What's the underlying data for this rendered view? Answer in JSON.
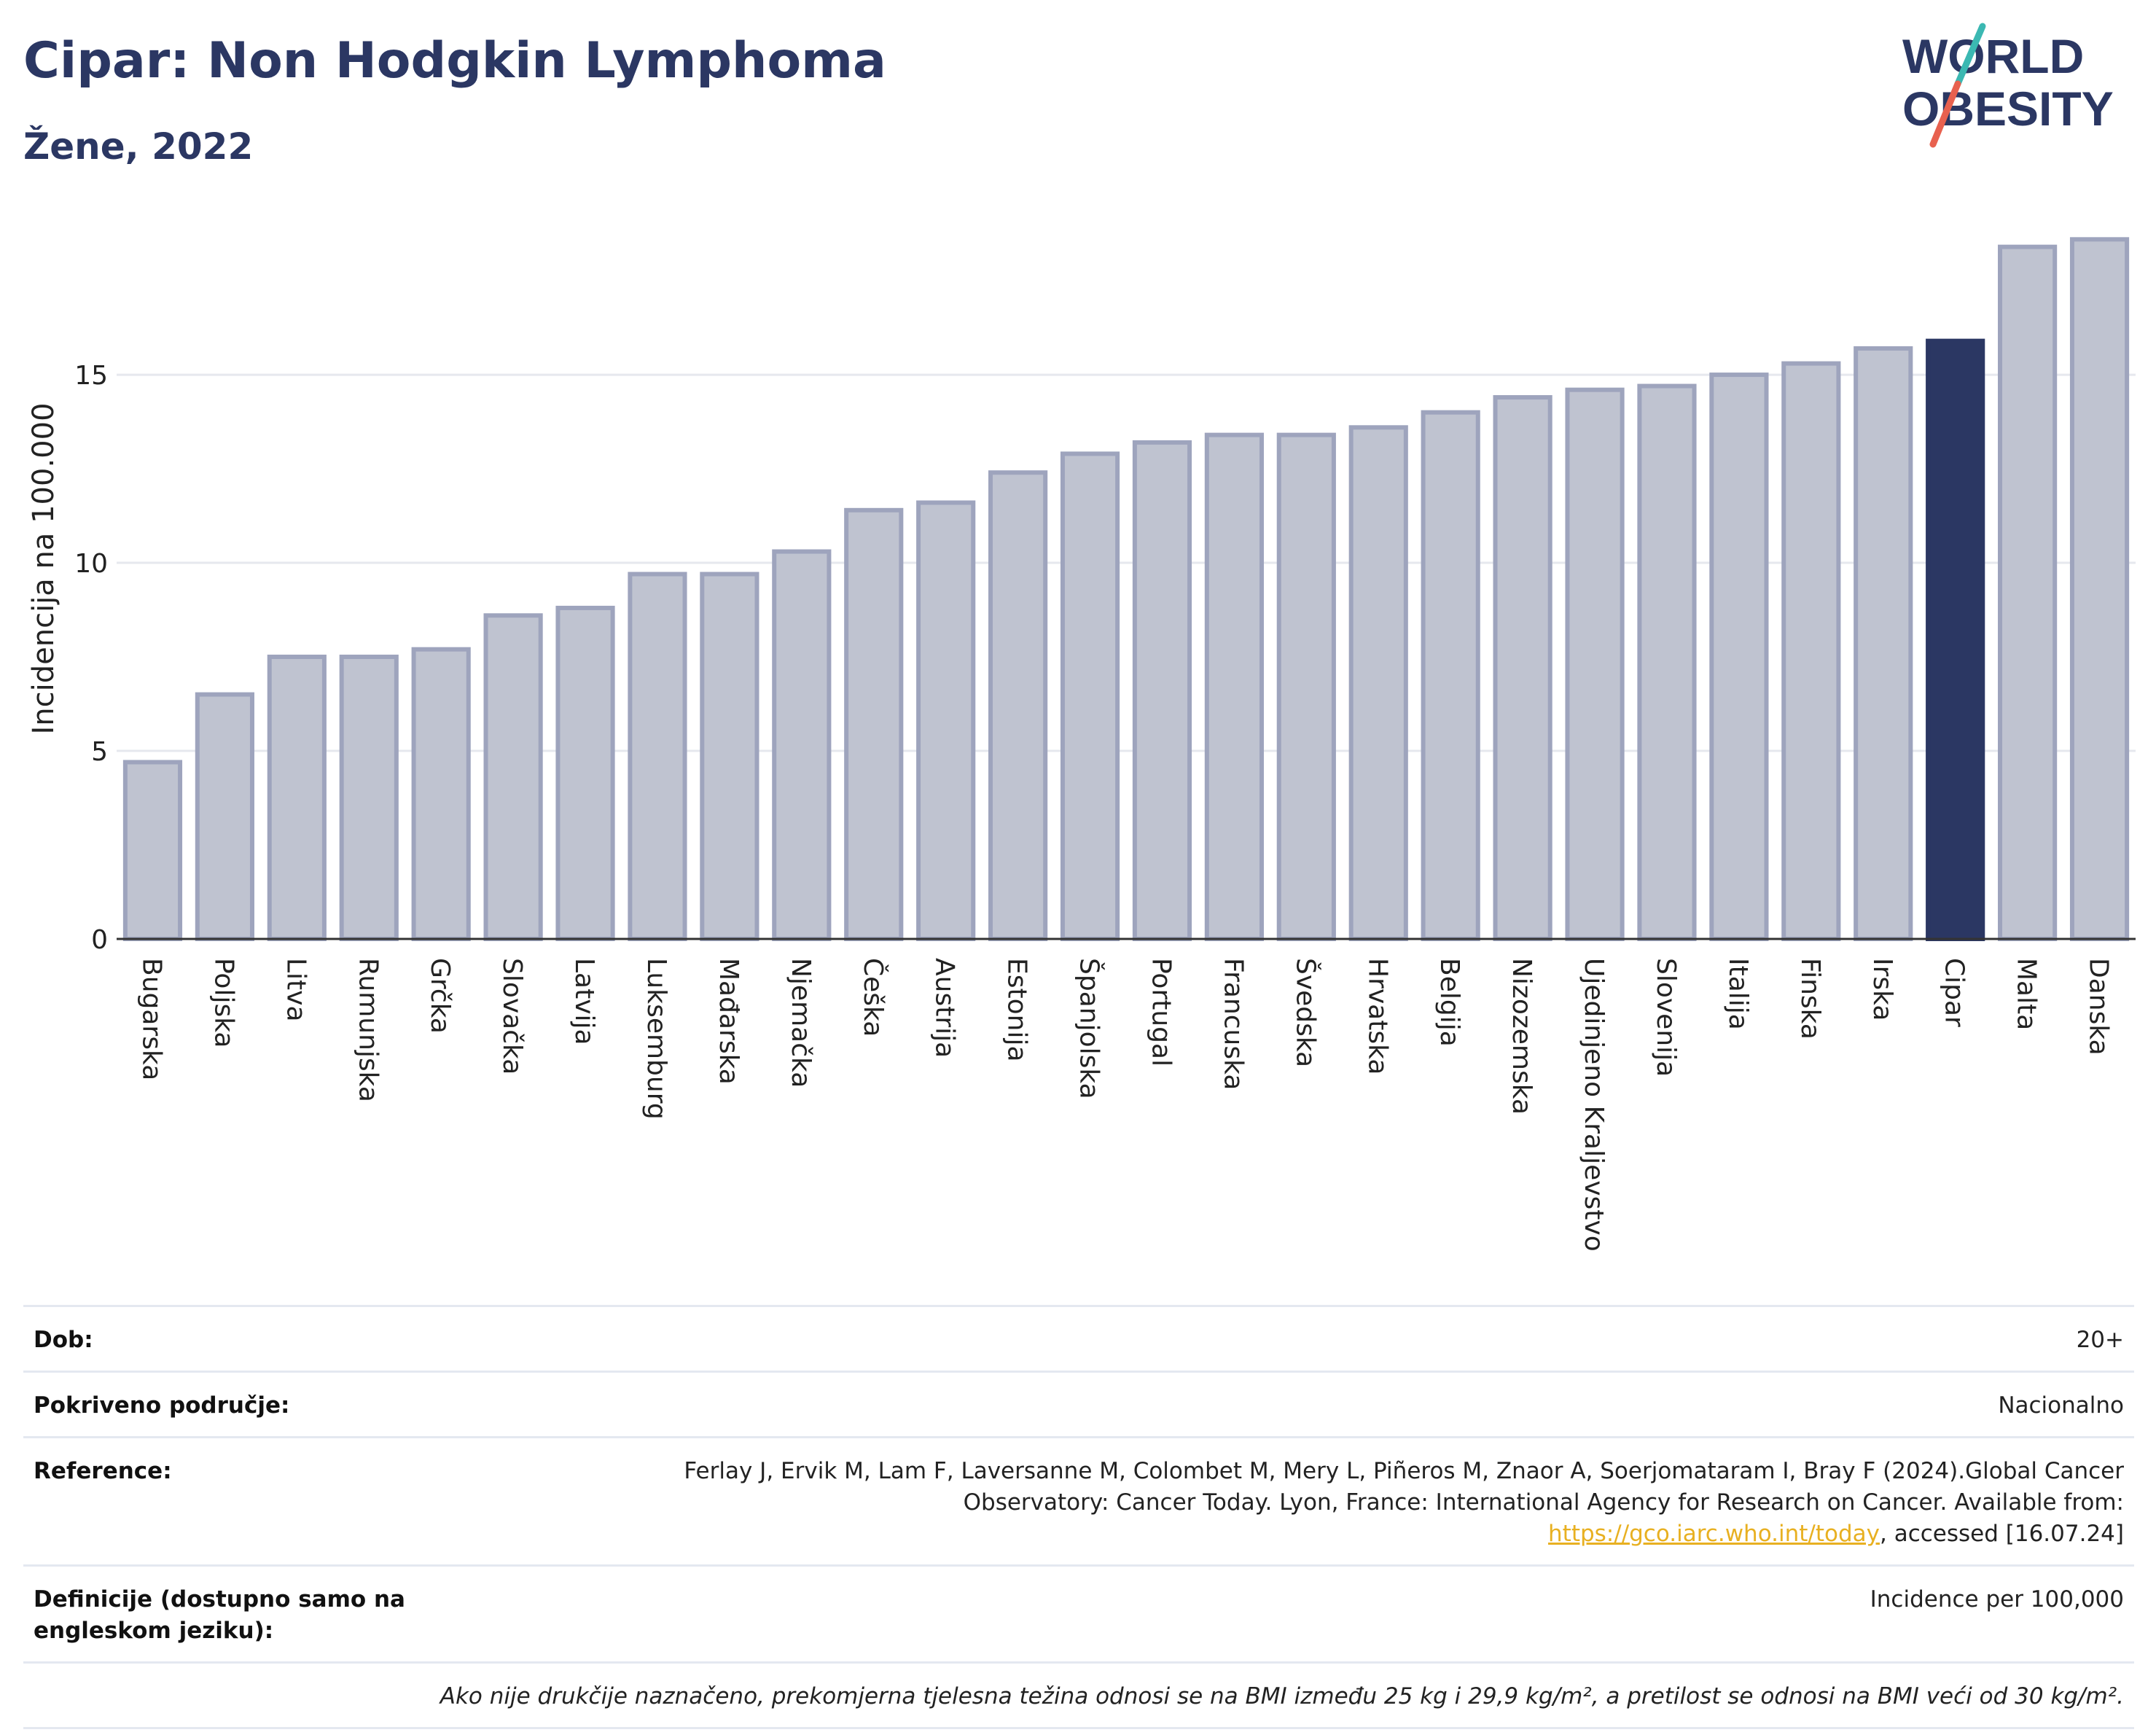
{
  "header": {
    "title": "Cipar: Non Hodgkin Lymphoma",
    "subtitle": "Žene, 2022",
    "logo_line1": "WORLD",
    "logo_line2": "OBESITY"
  },
  "colors": {
    "highlight": "#2b3763",
    "bar_fill": "#bfc3d0",
    "bar_stroke": "#9ea4bd",
    "logo_text": "#2b3763",
    "logo_slash_top": "#3bb8b2",
    "logo_slash_bottom": "#e8614f",
    "link": "#e8b021"
  },
  "chart_data": {
    "type": "bar",
    "ylabel": "Incidencija na 100.000",
    "ylim": [
      0,
      18.8
    ],
    "yticks": [
      0,
      5,
      10,
      15
    ],
    "grid": true,
    "highlight_category": "Cipar",
    "categories": [
      "Bugarska",
      "Poljska",
      "Litva",
      "Rumunjska",
      "Grčka",
      "Slovačka",
      "Latvija",
      "Luksemburg",
      "Mađarska",
      "Njemačka",
      "Češka",
      "Austrija",
      "Estonija",
      "Španjolska",
      "Portugal",
      "Francuska",
      "Švedska",
      "Hrvatska",
      "Belgija",
      "Nizozemska",
      "Ujedinjeno Kraljevstvo",
      "Slovenija",
      "Italija",
      "Finska",
      "Irska",
      "Cipar",
      "Malta",
      "Danska"
    ],
    "values": [
      4.7,
      6.5,
      7.5,
      7.5,
      7.7,
      8.6,
      8.8,
      9.7,
      9.7,
      10.3,
      11.4,
      11.6,
      12.4,
      12.9,
      13.2,
      13.4,
      13.4,
      13.6,
      14.0,
      14.4,
      14.6,
      14.7,
      15.0,
      15.3,
      15.7,
      15.9,
      18.4,
      18.6
    ]
  },
  "info": {
    "age_label": "Dob:",
    "age_value": "20+",
    "coverage_label": "Pokriveno područje:",
    "coverage_value": "Nacionalno",
    "reference_label": "Reference:",
    "reference_text": "Ferlay J, Ervik M, Lam F, Laversanne M, Colombet M, Mery L, Piñeros M, Znaor A, Soerjomataram I, Bray F (2024).Global Cancer Observatory: Cancer Today. Lyon, France: International Agency for Research on Cancer. Available from: ",
    "reference_link": "https://gco.iarc.who.int/today",
    "reference_suffix": ", accessed [16.07.24]",
    "definitions_label": "Definicije (dostupno samo na engleskom jeziku):",
    "definitions_value": "Incidence per 100,000",
    "footnote": "Ako nije drukčije naznačeno, prekomjerna tjelesna težina odnosi se na BMI između 25 kg i 29,9 kg/m², a pretilost se odnosi na BMI veći od 30 kg/m²."
  }
}
